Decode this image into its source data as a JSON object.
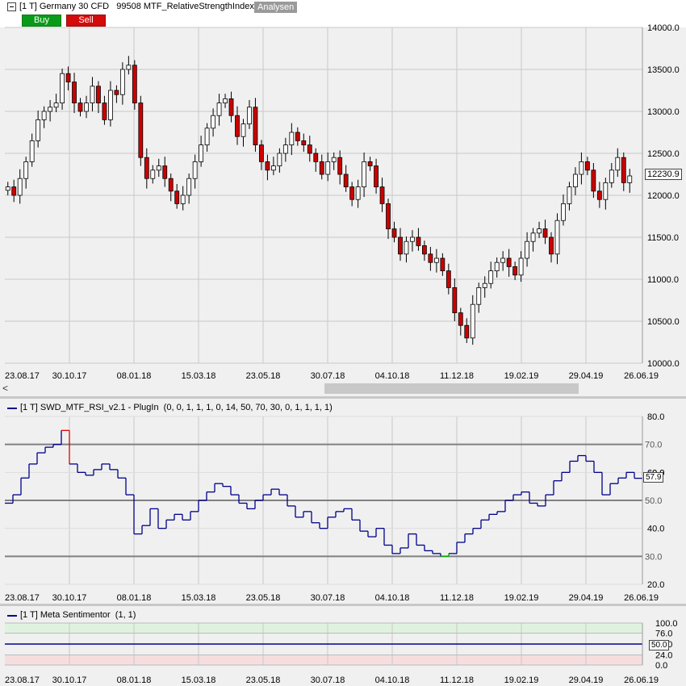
{
  "header": {
    "title": "[1 T] Germany 30 CFD   99508 MTF_RelativeStrengthIndex",
    "analysen_label": "Analysen",
    "buy_label": "Buy",
    "sell_label": "Sell"
  },
  "price_panel": {
    "y_ticks": [
      "14000.0",
      "13500.0",
      "13000.0",
      "12500.0",
      "12000.0",
      "11500.0",
      "11000.0",
      "10500.0",
      "10000.0"
    ],
    "y_range": [
      10000,
      14000
    ],
    "last_price": "12230.9",
    "last_value": 12230.9
  },
  "x_labels": [
    "23.08.17",
    "30.10.17",
    "08.01.18",
    "15.03.18",
    "23.05.18",
    "30.07.18",
    "04.10.18",
    "11.12.18",
    "19.02.19",
    "29.04.19",
    "26.06.19"
  ],
  "rsi_panel": {
    "title": "[1 T] SWD_MTF_RSI_v2.1 - PlugIn  (0, 0, 1, 1, 1, 0, 14, 50, 70, 30, 0, 1, 1, 1, 1)",
    "y_ticks": [
      "80.0",
      "60.0",
      "40.0",
      "20.0"
    ],
    "levels": [
      "70.0",
      "50.0",
      "30.0"
    ],
    "current_value": "57.9",
    "overlap_label": "60.0"
  },
  "sentiment_panel": {
    "title": "[1 T] Meta Sentimentor  (1, 1)",
    "y_ticks": [
      "100.0",
      "76.0",
      "50.0",
      "24.0",
      "0.0"
    ],
    "current_value": "50.0",
    "sentiment_value": 50
  },
  "colors": {
    "up_candle": "#ffffff",
    "down_candle": "#cc0000",
    "rsi_line": "#00008b",
    "rsi_overbought": "#dd0000",
    "rsi_oversold": "#00aa00",
    "grid": "#c8c8c8"
  },
  "chart_data": [
    {
      "type": "candlestick",
      "title": "[1 T] Germany 30 CFD",
      "x": [
        "23.08.17",
        "30.10.17",
        "08.01.18",
        "15.03.18",
        "23.05.18",
        "30.07.18",
        "04.10.18",
        "11.12.18",
        "19.02.19",
        "29.04.19",
        "26.06.19"
      ],
      "ylim": [
        10000,
        14000
      ],
      "closes": [
        12100,
        12000,
        12200,
        12400,
        12650,
        12900,
        13000,
        13050,
        13100,
        13450,
        13350,
        13100,
        13000,
        13100,
        13300,
        13100,
        12900,
        13250,
        13200,
        13500,
        13550,
        13100,
        12450,
        12200,
        12300,
        12350,
        12200,
        12050,
        11900,
        12000,
        12200,
        12400,
        12600,
        12800,
        12950,
        13100,
        13150,
        12950,
        12700,
        12850,
        13050,
        12600,
        12400,
        12300,
        12350,
        12500,
        12600,
        12750,
        12650,
        12600,
        12500,
        12400,
        12250,
        12400,
        12450,
        12250,
        12100,
        11950,
        12100,
        12400,
        12350,
        12100,
        11900,
        11600,
        11500,
        11300,
        11450,
        11500,
        11400,
        11300,
        11200,
        11250,
        11100,
        10900,
        10600,
        10450,
        10300,
        10700,
        10900,
        10950,
        11100,
        11200,
        11250,
        11150,
        11050,
        11250,
        11450,
        11550,
        11600,
        11500,
        11300,
        11700,
        11900,
        12100,
        12250,
        12400,
        12300,
        12050,
        11950,
        12150,
        12300,
        12450,
        12150,
        12230.9
      ]
    },
    {
      "type": "line",
      "title": "[1 T] SWD_MTF_RSI_v2.1 - PlugIn",
      "ylim": [
        20,
        80
      ],
      "levels": [
        70,
        50,
        30
      ],
      "values": [
        49,
        52,
        58,
        63,
        67,
        69,
        70,
        75,
        63,
        60,
        59,
        61,
        63,
        61,
        58,
        52,
        38,
        41,
        47,
        40,
        43,
        45,
        43,
        46,
        50,
        53,
        56,
        55,
        52,
        49,
        47,
        50,
        52,
        54,
        52,
        48,
        44,
        46,
        42,
        40,
        44,
        46,
        47,
        43,
        39,
        37,
        40,
        34,
        31,
        33,
        38,
        34,
        32,
        31,
        30,
        31,
        35,
        38,
        40,
        43,
        45,
        46,
        50,
        52,
        53,
        49,
        48,
        52,
        57,
        60,
        64,
        66,
        64,
        60,
        52,
        56,
        58,
        60,
        57.9
      ]
    },
    {
      "type": "bar",
      "title": "[1 T] Meta Sentimentor",
      "ylim": [
        0,
        100
      ],
      "values": [
        50
      ]
    }
  ]
}
